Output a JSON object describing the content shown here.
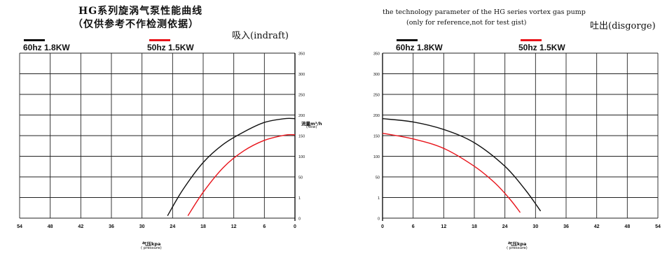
{
  "titles": {
    "zh_line1": "HG系列旋涡气泵性能曲线",
    "zh_line2": "（仅供参考不作检测依据）",
    "en_line1": "the technology parameter of the HG series vortex gas pump",
    "en_line2": "(only for reference,not for test gist)"
  },
  "modes": {
    "suction": "吸入(indraft)",
    "discharge": "吐出(disgorge)"
  },
  "legend": {
    "left": {
      "label60": "60hz  1.8KW",
      "label50": "50hz  1.5KW"
    },
    "right": {
      "label60": "60hz  1.8KW",
      "label50": "50hz  1.5KW"
    }
  },
  "colors": {
    "hz60": "#111111",
    "hz50": "#e8141b",
    "grid": "#222222"
  },
  "axis_labels": {
    "flow_zh": "流量m³/h",
    "flow_unit": "(4kw)",
    "pressure_zh": "气压kpa",
    "pressure_en": "( pressure)"
  },
  "chart_data": [
    {
      "type": "line",
      "title": "吸入(indraft)",
      "xlabel": "气压kpa ( pressure)",
      "ylabel": "流量m³/h",
      "xlim": [
        54,
        0
      ],
      "ylim": [
        0,
        350
      ],
      "x_ticks": [
        54,
        48,
        42,
        36,
        30,
        24,
        18,
        12,
        6,
        0
      ],
      "y_ticks": [
        "0",
        "1",
        "50",
        "100",
        "150",
        "200",
        "250",
        "300",
        "350"
      ],
      "grid": true,
      "y_axis_side": "right",
      "series": [
        {
          "name": "60hz 1.8KW",
          "color": "#111111",
          "points": [
            [
              25,
              5
            ],
            [
              22,
              60
            ],
            [
              18,
              118
            ],
            [
              14,
              157
            ],
            [
              10,
              183
            ],
            [
              6,
              203
            ],
            [
              2,
              211
            ],
            [
              0,
              211
            ]
          ]
        },
        {
          "name": "50hz 1.5KW",
          "color": "#e8141b",
          "points": [
            [
              21,
              5
            ],
            [
              18,
              55
            ],
            [
              14,
              108
            ],
            [
              10,
              143
            ],
            [
              6,
              165
            ],
            [
              2,
              176
            ],
            [
              0,
              177
            ]
          ]
        }
      ]
    },
    {
      "type": "line",
      "title": "吐出(disgorge)",
      "xlabel": "气压kpa ( pressure)",
      "ylabel": "",
      "xlim": [
        0,
        54
      ],
      "ylim": [
        0,
        350
      ],
      "x_ticks": [
        0,
        6,
        12,
        18,
        24,
        30,
        36,
        42,
        48,
        54
      ],
      "y_ticks": [
        "0",
        "1",
        "50",
        "100",
        "150",
        "200",
        "250",
        "300",
        "350"
      ],
      "grid": true,
      "y_axis_side": "left",
      "series": [
        {
          "name": "60hz 1.8KW",
          "color": "#111111",
          "points": [
            [
              0,
              211
            ],
            [
              6,
              204
            ],
            [
              12,
              188
            ],
            [
              18,
              160
            ],
            [
              24,
              110
            ],
            [
              28,
              60
            ],
            [
              31,
              15
            ]
          ]
        },
        {
          "name": "50hz 1.5KW",
          "color": "#e8141b",
          "points": [
            [
              0,
              180
            ],
            [
              6,
              168
            ],
            [
              12,
              148
            ],
            [
              18,
              110
            ],
            [
              22,
              75
            ],
            [
              25,
              40
            ],
            [
              27,
              12
            ]
          ]
        }
      ]
    }
  ]
}
